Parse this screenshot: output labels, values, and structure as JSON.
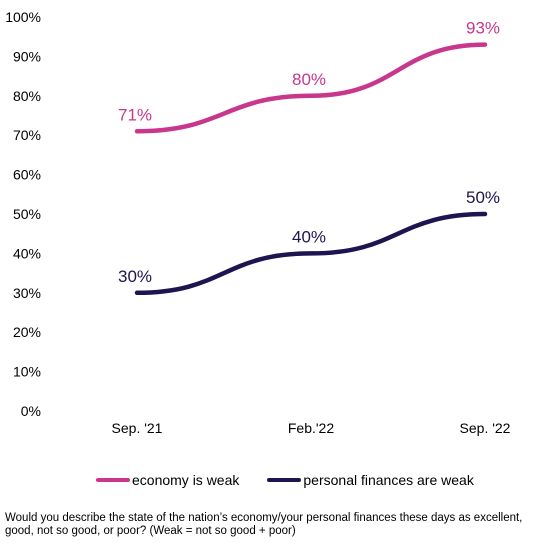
{
  "chart_data": {
    "type": "line",
    "categories": [
      "Sep. '21",
      "Feb.'22",
      "Sep. '22"
    ],
    "ylim": [
      0,
      100
    ],
    "yticks": [
      0,
      10,
      20,
      30,
      40,
      50,
      60,
      70,
      80,
      90,
      100
    ],
    "ytick_labels": [
      "0%",
      "10%",
      "20%",
      "30%",
      "40%",
      "50%",
      "60%",
      "70%",
      "80%",
      "90%",
      "100%"
    ],
    "grid": false,
    "legend_position": "bottom",
    "series": [
      {
        "name": "economy is weak",
        "values": [
          71,
          80,
          93
        ],
        "labels": [
          "71%",
          "80%",
          "93%"
        ],
        "color": "#C8378C"
      },
      {
        "name": "personal finances are weak",
        "values": [
          30,
          40,
          50
        ],
        "labels": [
          "30%",
          "40%",
          "50%"
        ],
        "color": "#1E1450"
      }
    ]
  },
  "footnote": "Would you describe the state of the nation’s economy/your personal finances these days as excellent, good, not so good, or poor?  (Weak = not so good + poor)"
}
